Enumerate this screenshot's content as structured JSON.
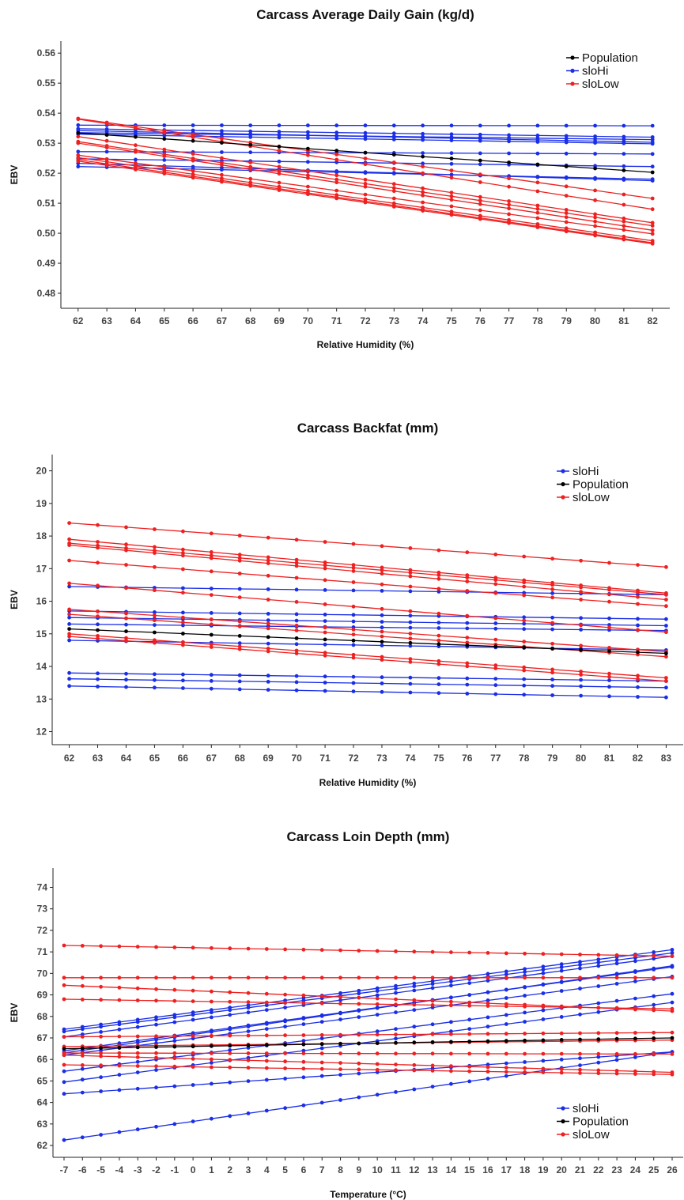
{
  "colors": {
    "Population": "#000000",
    "sloHi": "#1a2ee6",
    "sloLow": "#ee2020",
    "axis": "#222222"
  },
  "chart_data": [
    {
      "type": "line",
      "title": "Carcass Average Daily Gain (kg/d)",
      "xlabel": "Relative Humidity (%)",
      "ylabel": "EBV",
      "x_start": 62,
      "x_end": 82,
      "xticks": [
        "62",
        "63",
        "64",
        "65",
        "66",
        "67",
        "68",
        "69",
        "70",
        "71",
        "72",
        "73",
        "74",
        "75",
        "76",
        "77",
        "78",
        "79",
        "80",
        "81",
        "82"
      ],
      "ylim": [
        0.475,
        0.564
      ],
      "yticks": [
        "0.48",
        "0.49",
        "0.50",
        "0.51",
        "0.52",
        "0.53",
        "0.54",
        "0.55",
        "0.56"
      ],
      "grid": false,
      "legend_position": "top-right",
      "legend": [
        "Population",
        "sloHi",
        "sloLow"
      ],
      "series": [
        {
          "group": "Population",
          "start": 0.5334,
          "end": 0.5203
        },
        {
          "group": "sloHi",
          "start": 0.536,
          "end": 0.5358
        },
        {
          "group": "sloHi",
          "start": 0.5348,
          "end": 0.532
        },
        {
          "group": "sloHi",
          "start": 0.5342,
          "end": 0.5303
        },
        {
          "group": "sloHi",
          "start": 0.5335,
          "end": 0.5312
        },
        {
          "group": "sloHi",
          "start": 0.533,
          "end": 0.5298
        },
        {
          "group": "sloHi",
          "start": 0.5272,
          "end": 0.5264
        },
        {
          "group": "sloHi",
          "start": 0.5248,
          "end": 0.5222
        },
        {
          "group": "sloHi",
          "start": 0.5233,
          "end": 0.5175
        },
        {
          "group": "sloHi",
          "start": 0.5222,
          "end": 0.518
        },
        {
          "group": "sloLow",
          "start": 0.5382,
          "end": 0.5116
        },
        {
          "group": "sloLow",
          "start": 0.538,
          "end": 0.508
        },
        {
          "group": "sloLow",
          "start": 0.5322,
          "end": 0.5035
        },
        {
          "group": "sloLow",
          "start": 0.5305,
          "end": 0.5025
        },
        {
          "group": "sloLow",
          "start": 0.53,
          "end": 0.501
        },
        {
          "group": "sloLow",
          "start": 0.526,
          "end": 0.4998
        },
        {
          "group": "sloLow",
          "start": 0.5252,
          "end": 0.4975
        },
        {
          "group": "sloLow",
          "start": 0.5245,
          "end": 0.4968
        },
        {
          "group": "sloLow",
          "start": 0.524,
          "end": 0.4965
        }
      ]
    },
    {
      "type": "line",
      "title": "Carcass Backfat (mm)",
      "xlabel": "Relative Humidity (%)",
      "ylabel": "EBV",
      "x_start": 62,
      "x_end": 83,
      "xticks": [
        "62",
        "63",
        "64",
        "65",
        "66",
        "67",
        "68",
        "69",
        "70",
        "71",
        "72",
        "73",
        "74",
        "75",
        "76",
        "77",
        "78",
        "79",
        "80",
        "81",
        "82",
        "83"
      ],
      "ylim": [
        11.6,
        20.5
      ],
      "yticks": [
        "12",
        "13",
        "14",
        "15",
        "16",
        "17",
        "18",
        "19",
        "20"
      ],
      "grid": false,
      "legend_position": "top-right",
      "legend": [
        "sloHi",
        "Population",
        "sloLow"
      ],
      "series": [
        {
          "group": "Population",
          "start": 15.15,
          "end": 14.4
        },
        {
          "group": "sloHi",
          "start": 16.45,
          "end": 16.2
        },
        {
          "group": "sloHi",
          "start": 15.7,
          "end": 15.45
        },
        {
          "group": "sloHi",
          "start": 15.5,
          "end": 15.25
        },
        {
          "group": "sloHi",
          "start": 15.3,
          "end": 15.1
        },
        {
          "group": "sloHi",
          "start": 14.8,
          "end": 14.5
        },
        {
          "group": "sloHi",
          "start": 13.8,
          "end": 13.55
        },
        {
          "group": "sloHi",
          "start": 13.62,
          "end": 13.35
        },
        {
          "group": "sloHi",
          "start": 13.4,
          "end": 13.05
        },
        {
          "group": "sloLow",
          "start": 18.4,
          "end": 17.05
        },
        {
          "group": "sloLow",
          "start": 17.9,
          "end": 16.25
        },
        {
          "group": "sloLow",
          "start": 17.78,
          "end": 16.2
        },
        {
          "group": "sloLow",
          "start": 17.72,
          "end": 16.05
        },
        {
          "group": "sloLow",
          "start": 17.25,
          "end": 15.85
        },
        {
          "group": "sloLow",
          "start": 16.55,
          "end": 15.05
        },
        {
          "group": "sloLow",
          "start": 15.75,
          "end": 14.45
        },
        {
          "group": "sloLow",
          "start": 15.6,
          "end": 14.3
        },
        {
          "group": "sloLow",
          "start": 15.0,
          "end": 13.65
        },
        {
          "group": "sloLow",
          "start": 14.92,
          "end": 13.55
        }
      ]
    },
    {
      "type": "line",
      "title": "Carcass Loin Depth (mm)",
      "xlabel": "Temperature (°C)",
      "ylabel": "EBV",
      "x_start": -7,
      "x_end": 26,
      "xticks": [
        "-7",
        "-6",
        "-5",
        "-4",
        "-3",
        "-2",
        "-1",
        "0",
        "1",
        "2",
        "3",
        "4",
        "5",
        "6",
        "7",
        "8",
        "9",
        "10",
        "11",
        "12",
        "13",
        "14",
        "15",
        "16",
        "17",
        "18",
        "19",
        "20",
        "21",
        "22",
        "23",
        "24",
        "25",
        "26"
      ],
      "ylim": [
        61.45,
        74.9
      ],
      "yticks": [
        "62",
        "63",
        "64",
        "65",
        "66",
        "67",
        "68",
        "69",
        "70",
        "71",
        "72",
        "73",
        "74"
      ],
      "grid": false,
      "legend_position": "bottom-right",
      "legend": [
        "sloHi",
        "Population",
        "sloLow"
      ],
      "series": [
        {
          "group": "Population",
          "start": 66.5,
          "end": 67.0
        },
        {
          "group": "sloHi",
          "start": 67.4,
          "end": 71.1
        },
        {
          "group": "sloHi",
          "start": 67.3,
          "end": 70.95
        },
        {
          "group": "sloHi",
          "start": 67.05,
          "end": 70.8
        },
        {
          "group": "sloHi",
          "start": 66.4,
          "end": 70.3
        },
        {
          "group": "sloHi",
          "start": 66.3,
          "end": 70.35
        },
        {
          "group": "sloHi",
          "start": 66.2,
          "end": 69.85
        },
        {
          "group": "sloHi",
          "start": 65.45,
          "end": 69.05
        },
        {
          "group": "sloHi",
          "start": 64.95,
          "end": 68.65
        },
        {
          "group": "sloHi",
          "start": 64.4,
          "end": 66.35
        },
        {
          "group": "sloHi",
          "start": 62.25,
          "end": 66.35
        },
        {
          "group": "sloLow",
          "start": 71.3,
          "end": 70.8
        },
        {
          "group": "sloLow",
          "start": 69.8,
          "end": 69.8
        },
        {
          "group": "sloLow",
          "start": 69.45,
          "end": 68.25
        },
        {
          "group": "sloLow",
          "start": 68.8,
          "end": 68.35
        },
        {
          "group": "sloLow",
          "start": 67.05,
          "end": 67.25
        },
        {
          "group": "sloLow",
          "start": 66.6,
          "end": 66.9
        },
        {
          "group": "sloLow",
          "start": 66.3,
          "end": 66.25
        },
        {
          "group": "sloLow",
          "start": 66.2,
          "end": 65.4
        },
        {
          "group": "sloLow",
          "start": 65.75,
          "end": 65.3
        }
      ]
    }
  ]
}
